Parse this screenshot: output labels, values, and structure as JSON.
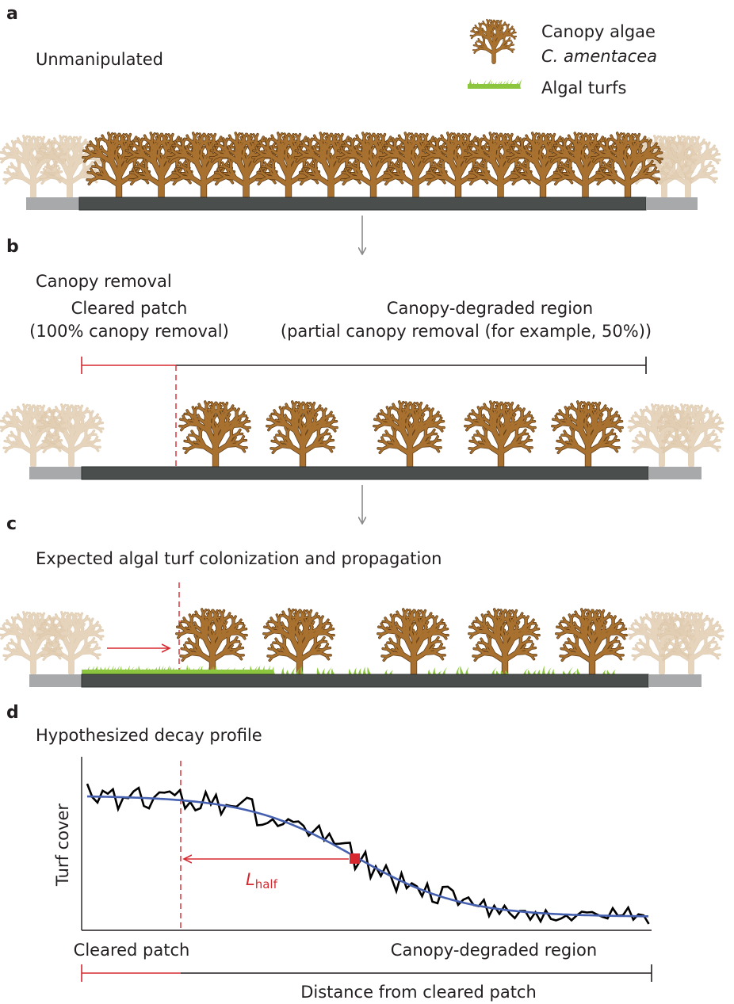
{
  "colors": {
    "canopy": "#a8712f",
    "canopy_outline": "#5e3a14",
    "faded": "#e2cdb2",
    "turf": "#8cc63f",
    "substrate_dark": "#4a4f4d",
    "substrate_light": "#a7a9ab",
    "cleared": "#d7282f",
    "fit": "#4660b0",
    "arrow_gray": "#8a8a8a"
  },
  "legend": {
    "canopy_label": "Canopy algae",
    "canopy_species": "C. amentacea",
    "turf_label": "Algal turfs"
  },
  "panel_a": {
    "letter": "a",
    "title": "Unmanipulated"
  },
  "panel_b": {
    "letter": "b",
    "title": "Canopy removal",
    "cleared_label": "Cleared patch",
    "cleared_sub": "(100% canopy removal)",
    "degraded_label": "Canopy-degraded region",
    "degraded_sub": "(partial canopy removal (for example, 50%))"
  },
  "panel_c": {
    "letter": "c",
    "title": "Expected algal turf colonization and propagation"
  },
  "panel_d": {
    "letter": "d",
    "title": "Hypothesized decay profile",
    "ylabel": "Turf cover",
    "lhalf_main": "L",
    "lhalf_sub": "half",
    "cleared_label": "Cleared patch",
    "degraded_label": "Canopy-degraded region",
    "xlabel": "Distance from cleared patch"
  }
}
